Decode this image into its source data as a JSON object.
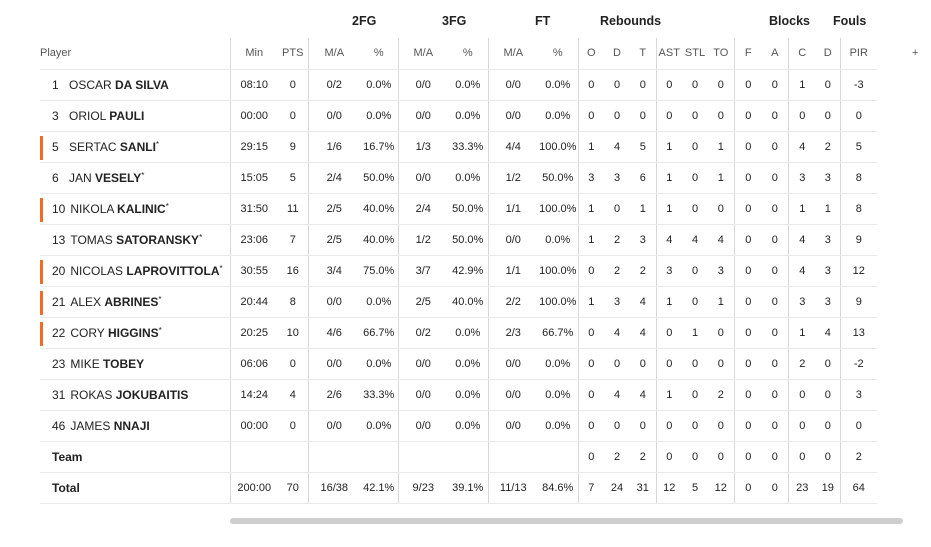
{
  "groups": {
    "fg2": "2FG",
    "fg3": "3FG",
    "ft": "FT",
    "reb": "Rebounds",
    "blk": "Blocks",
    "fouls": "Fouls"
  },
  "columns": [
    "Player",
    "Min",
    "PTS",
    "M/A",
    "%",
    "M/A",
    "%",
    "M/A",
    "%",
    "O",
    "D",
    "T",
    "AST",
    "STL",
    "TO",
    "F",
    "A",
    "C",
    "D",
    "PIR"
  ],
  "more": "+",
  "players": [
    {
      "no": "1",
      "first": "OSCAR",
      "last": "DA SILVA",
      "starter": false,
      "min": "08:10",
      "pts": "0",
      "fg2": "0/2",
      "fg2p": "0.0%",
      "fg3": "0/0",
      "fg3p": "0.0%",
      "ft": "0/0",
      "ftp": "0.0%",
      "o": "0",
      "d": "0",
      "t": "0",
      "ast": "0",
      "stl": "0",
      "to": "0",
      "bf": "0",
      "ba": "0",
      "fc": "1",
      "fd": "0",
      "pir": "-3"
    },
    {
      "no": "3",
      "first": "ORIOL",
      "last": "PAULI",
      "starter": false,
      "min": "00:00",
      "pts": "0",
      "fg2": "0/0",
      "fg2p": "0.0%",
      "fg3": "0/0",
      "fg3p": "0.0%",
      "ft": "0/0",
      "ftp": "0.0%",
      "o": "0",
      "d": "0",
      "t": "0",
      "ast": "0",
      "stl": "0",
      "to": "0",
      "bf": "0",
      "ba": "0",
      "fc": "0",
      "fd": "0",
      "pir": "0"
    },
    {
      "no": "5",
      "first": "SERTAC",
      "last": "SANLI",
      "starter": true,
      "min": "29:15",
      "pts": "9",
      "fg2": "1/6",
      "fg2p": "16.7%",
      "fg3": "1/3",
      "fg3p": "33.3%",
      "ft": "4/4",
      "ftp": "100.0%",
      "o": "1",
      "d": "4",
      "t": "5",
      "ast": "1",
      "stl": "0",
      "to": "1",
      "bf": "0",
      "ba": "0",
      "fc": "4",
      "fd": "2",
      "pir": "5"
    },
    {
      "no": "6",
      "first": "JAN",
      "last": "VESELY",
      "starter": false,
      "star": true,
      "min": "15:05",
      "pts": "5",
      "fg2": "2/4",
      "fg2p": "50.0%",
      "fg3": "0/0",
      "fg3p": "0.0%",
      "ft": "1/2",
      "ftp": "50.0%",
      "o": "3",
      "d": "3",
      "t": "6",
      "ast": "1",
      "stl": "0",
      "to": "1",
      "bf": "0",
      "ba": "0",
      "fc": "3",
      "fd": "3",
      "pir": "8"
    },
    {
      "no": "10",
      "first": "NIKOLA",
      "last": "KALINIC",
      "starter": true,
      "min": "31:50",
      "pts": "11",
      "fg2": "2/5",
      "fg2p": "40.0%",
      "fg3": "2/4",
      "fg3p": "50.0%",
      "ft": "1/1",
      "ftp": "100.0%",
      "o": "1",
      "d": "0",
      "t": "1",
      "ast": "1",
      "stl": "0",
      "to": "0",
      "bf": "0",
      "ba": "0",
      "fc": "1",
      "fd": "1",
      "pir": "8"
    },
    {
      "no": "13",
      "first": "TOMAS",
      "last": "SATORANSKY",
      "starter": false,
      "star": true,
      "min": "23:06",
      "pts": "7",
      "fg2": "2/5",
      "fg2p": "40.0%",
      "fg3": "1/2",
      "fg3p": "50.0%",
      "ft": "0/0",
      "ftp": "0.0%",
      "o": "1",
      "d": "2",
      "t": "3",
      "ast": "4",
      "stl": "4",
      "to": "4",
      "bf": "0",
      "ba": "0",
      "fc": "4",
      "fd": "3",
      "pir": "9"
    },
    {
      "no": "20",
      "first": "NICOLAS",
      "last": "LAPROVITTOLA",
      "starter": true,
      "min": "30:55",
      "pts": "16",
      "fg2": "3/4",
      "fg2p": "75.0%",
      "fg3": "3/7",
      "fg3p": "42.9%",
      "ft": "1/1",
      "ftp": "100.0%",
      "o": "0",
      "d": "2",
      "t": "2",
      "ast": "3",
      "stl": "0",
      "to": "3",
      "bf": "0",
      "ba": "0",
      "fc": "4",
      "fd": "3",
      "pir": "12"
    },
    {
      "no": "21",
      "first": "ALEX",
      "last": "ABRINES",
      "starter": true,
      "min": "20:44",
      "pts": "8",
      "fg2": "0/0",
      "fg2p": "0.0%",
      "fg3": "2/5",
      "fg3p": "40.0%",
      "ft": "2/2",
      "ftp": "100.0%",
      "o": "1",
      "d": "3",
      "t": "4",
      "ast": "1",
      "stl": "0",
      "to": "1",
      "bf": "0",
      "ba": "0",
      "fc": "3",
      "fd": "3",
      "pir": "9"
    },
    {
      "no": "22",
      "first": "CORY",
      "last": "HIGGINS",
      "starter": true,
      "min": "20:25",
      "pts": "10",
      "fg2": "4/6",
      "fg2p": "66.7%",
      "fg3": "0/2",
      "fg3p": "0.0%",
      "ft": "2/3",
      "ftp": "66.7%",
      "o": "0",
      "d": "4",
      "t": "4",
      "ast": "0",
      "stl": "1",
      "to": "0",
      "bf": "0",
      "ba": "0",
      "fc": "1",
      "fd": "4",
      "pir": "13"
    },
    {
      "no": "23",
      "first": "MIKE",
      "last": "TOBEY",
      "starter": false,
      "min": "06:06",
      "pts": "0",
      "fg2": "0/0",
      "fg2p": "0.0%",
      "fg3": "0/0",
      "fg3p": "0.0%",
      "ft": "0/0",
      "ftp": "0.0%",
      "o": "0",
      "d": "0",
      "t": "0",
      "ast": "0",
      "stl": "0",
      "to": "0",
      "bf": "0",
      "ba": "0",
      "fc": "2",
      "fd": "0",
      "pir": "-2"
    },
    {
      "no": "31",
      "first": "ROKAS",
      "last": "JOKUBAITIS",
      "starter": false,
      "min": "14:24",
      "pts": "4",
      "fg2": "2/6",
      "fg2p": "33.3%",
      "fg3": "0/0",
      "fg3p": "0.0%",
      "ft": "0/0",
      "ftp": "0.0%",
      "o": "0",
      "d": "4",
      "t": "4",
      "ast": "1",
      "stl": "0",
      "to": "2",
      "bf": "0",
      "ba": "0",
      "fc": "0",
      "fd": "0",
      "pir": "3"
    },
    {
      "no": "46",
      "first": "JAMES",
      "last": "NNAJI",
      "starter": false,
      "min": "00:00",
      "pts": "0",
      "fg2": "0/0",
      "fg2p": "0.0%",
      "fg3": "0/0",
      "fg3p": "0.0%",
      "ft": "0/0",
      "ftp": "0.0%",
      "o": "0",
      "d": "0",
      "t": "0",
      "ast": "0",
      "stl": "0",
      "to": "0",
      "bf": "0",
      "ba": "0",
      "fc": "0",
      "fd": "0",
      "pir": "0"
    }
  ],
  "starter_mark": "*",
  "team": {
    "label": "Team",
    "min": "",
    "pts": "",
    "fg2": "",
    "fg2p": "",
    "fg3": "",
    "fg3p": "",
    "ft": "",
    "ftp": "",
    "o": "0",
    "d": "2",
    "t": "2",
    "ast": "0",
    "stl": "0",
    "to": "0",
    "bf": "0",
    "ba": "0",
    "fc": "0",
    "fd": "0",
    "pir": "2"
  },
  "total": {
    "label": "Total",
    "min": "200:00",
    "pts": "70",
    "fg2": "16/38",
    "fg2p": "42.1%",
    "fg3": "9/23",
    "fg3p": "39.1%",
    "ft": "11/13",
    "ftp": "84.6%",
    "o": "7",
    "d": "24",
    "t": "31",
    "ast": "12",
    "stl": "5",
    "to": "12",
    "bf": "0",
    "ba": "0",
    "fc": "23",
    "fd": "19",
    "pir": "64"
  }
}
